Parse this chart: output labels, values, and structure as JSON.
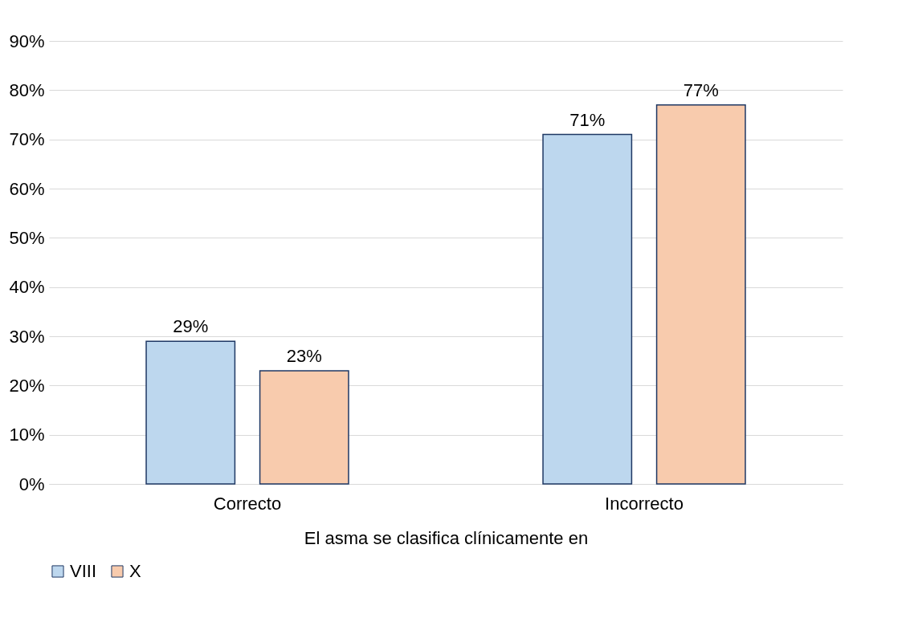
{
  "chart_data": {
    "type": "bar",
    "xlabel": "El asma se clasifica clínicamente en",
    "categories": [
      "Correcto",
      "Incorrecto"
    ],
    "series": [
      {
        "name": "VIII",
        "color": "#bdd7ee",
        "values": [
          29,
          71
        ],
        "value_labels": [
          "29%",
          "71%"
        ]
      },
      {
        "name": "X",
        "color": "#f8cbad",
        "values": [
          23,
          77
        ],
        "value_labels": [
          "23%",
          "77%"
        ]
      }
    ],
    "ylim": [
      0,
      90
    ],
    "yticks": [
      {
        "value": 0,
        "label": "0%"
      },
      {
        "value": 10,
        "label": "10%"
      },
      {
        "value": 20,
        "label": "20%"
      },
      {
        "value": 30,
        "label": "30%"
      },
      {
        "value": 40,
        "label": "40%"
      },
      {
        "value": 50,
        "label": "50%"
      },
      {
        "value": 60,
        "label": "60%"
      },
      {
        "value": 70,
        "label": "70%"
      },
      {
        "value": 80,
        "label": "80%"
      },
      {
        "value": 90,
        "label": "90%"
      }
    ],
    "grid": "y",
    "legend": "bottom"
  }
}
